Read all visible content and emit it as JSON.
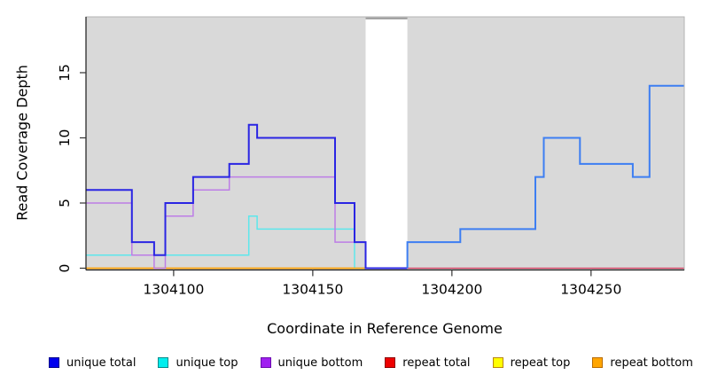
{
  "figure": {
    "xlabel": "Coordinate in Reference Genome",
    "ylabel": "Read Coverage Depth"
  },
  "chart_data": {
    "type": "step-line",
    "title": "",
    "xlabel": "Coordinate in Reference Genome",
    "ylabel": "Read Coverage Depth",
    "xlim": [
      1304068.5,
      1304283.5
    ],
    "ylim": [
      0,
      19.25
    ],
    "x_ticks": [
      1304100,
      1304150,
      1304200,
      1304250
    ],
    "y_ticks": [
      0,
      5,
      10,
      15
    ],
    "grid": false,
    "plot_background": "#d9d9d9",
    "masked_region": {
      "x_start": 1304169,
      "x_end": 1304184,
      "fill": "#ffffff",
      "top_line_color": "#999999"
    },
    "series": [
      {
        "name": "unique total",
        "zorder": 6,
        "segments": [
          {
            "color": "#2a25e3",
            "width": 2,
            "x": [
              1304068.5,
              1304085,
              1304093,
              1304097,
              1304107,
              1304120,
              1304127,
              1304130,
              1304158,
              1304165,
              1304169,
              1304184
            ],
            "values": [
              6,
              2,
              1,
              5,
              7,
              8,
              11,
              10,
              5,
              2,
              0
            ]
          },
          {
            "color": "#3d7ef2",
            "width": 2,
            "x": [
              1304184,
              1304184,
              1304203,
              1304230,
              1304233,
              1304246,
              1304265,
              1304271,
              1304283.5
            ],
            "values": [
              0,
              2,
              3,
              7,
              10,
              8,
              7,
              14
            ]
          }
        ]
      },
      {
        "name": "unique top",
        "zorder": 3,
        "segments": [
          {
            "color": "#5de7ec",
            "width": 1.5,
            "x": [
              1304068.5,
              1304127,
              1304130,
              1304165,
              1304169
            ],
            "values": [
              1,
              4,
              3,
              0
            ]
          }
        ]
      },
      {
        "name": "unique bottom",
        "zorder": 5,
        "segments": [
          {
            "color": "#bd7de6",
            "width": 1.5,
            "x": [
              1304068.5,
              1304085,
              1304093,
              1304097,
              1304107,
              1304120,
              1304158,
              1304169
            ],
            "values": [
              5,
              1,
              0,
              4,
              6,
              7,
              2
            ]
          }
        ]
      },
      {
        "name": "repeat total",
        "zorder": 1,
        "segments": [
          {
            "color": "#d6395e",
            "width": 1.3,
            "x": [
              1304068.5,
              1304169
            ],
            "values": [
              0
            ]
          },
          {
            "color": "#d6395e",
            "width": 1.3,
            "x": [
              1304184,
              1304283.5
            ],
            "values": [
              0
            ]
          }
        ]
      },
      {
        "name": "repeat top",
        "zorder": 2,
        "segments": [
          {
            "color": "#ffee00",
            "width": 1.3,
            "x": [
              1304068.5,
              1304169
            ],
            "values": [
              0
            ]
          }
        ]
      },
      {
        "name": "repeat bottom",
        "zorder": 4,
        "segments": [
          {
            "color": "#ffa408",
            "width": 1.5,
            "x": [
              1304068.5,
              1304169
            ],
            "values": [
              0
            ]
          }
        ]
      }
    ]
  },
  "legend": {
    "items": [
      {
        "label": "unique total",
        "fill": "#0000EE",
        "border": "#00008B"
      },
      {
        "label": "unique top",
        "fill": "#00EEEE",
        "border": "#008B8B"
      },
      {
        "label": "unique bottom",
        "fill": "#A020F0",
        "border": "#6A0DAD"
      },
      {
        "label": "repeat total",
        "fill": "#EE0000",
        "border": "#8B0000"
      },
      {
        "label": "repeat top",
        "fill": "#FFFF00",
        "border": "#B8860B"
      },
      {
        "label": "repeat bottom",
        "fill": "#FFA500",
        "border": "#B86B00"
      }
    ]
  }
}
